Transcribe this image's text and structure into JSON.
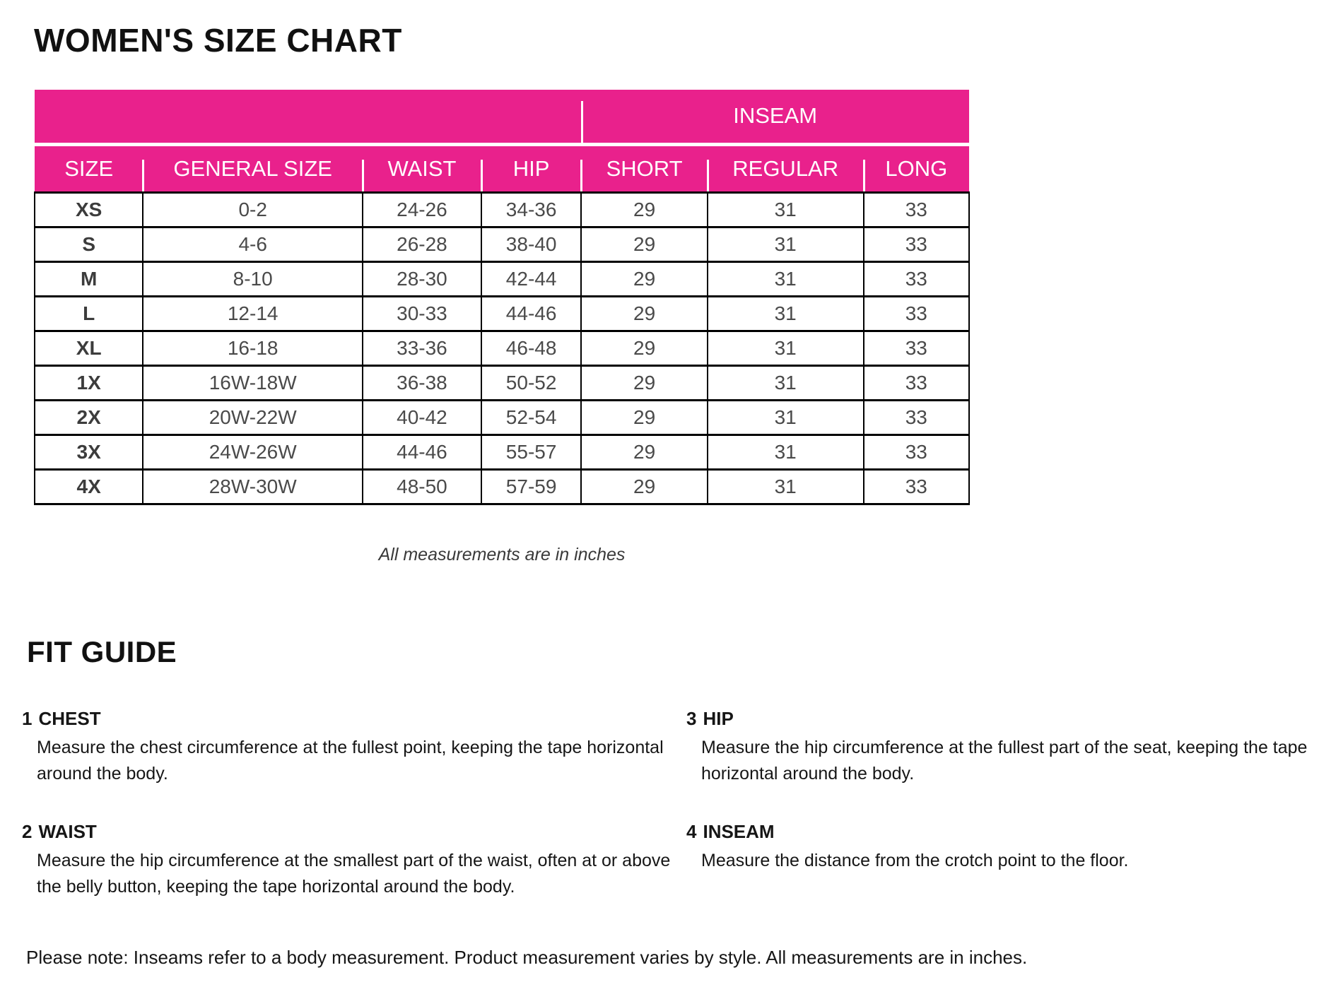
{
  "page": {
    "title": "WOMEN'S SIZE CHART",
    "table_caption": "All measurements are in inches",
    "bottom_note": "Please note: Inseams refer to a body measurement. Product measurement varies by style. All measurements are in inches."
  },
  "colors": {
    "accent_pink": "#E9218C",
    "table_border": "#000000",
    "cell_text": "#4a4a4a",
    "header_text": "#ffffff"
  },
  "size_chart": {
    "inseam_header": "INSEAM",
    "columns": [
      "SIZE",
      "GENERAL SIZE",
      "WAIST",
      "HIP",
      "SHORT",
      "REGULAR",
      "LONG"
    ],
    "rows": [
      [
        "XS",
        "0-2",
        "24-26",
        "34-36",
        "29",
        "31",
        "33"
      ],
      [
        "S",
        "4-6",
        "26-28",
        "38-40",
        "29",
        "31",
        "33"
      ],
      [
        "M",
        "8-10",
        "28-30",
        "42-44",
        "29",
        "31",
        "33"
      ],
      [
        "L",
        "12-14",
        "30-33",
        "44-46",
        "29",
        "31",
        "33"
      ],
      [
        "XL",
        "16-18",
        "33-36",
        "46-48",
        "29",
        "31",
        "33"
      ],
      [
        "1X",
        "16W-18W",
        "36-38",
        "50-52",
        "29",
        "31",
        "33"
      ],
      [
        "2X",
        "20W-22W",
        "40-42",
        "52-54",
        "29",
        "31",
        "33"
      ],
      [
        "3X",
        "24W-26W",
        "44-46",
        "55-57",
        "29",
        "31",
        "33"
      ],
      [
        "4X",
        "28W-30W",
        "48-50",
        "57-59",
        "29",
        "31",
        "33"
      ]
    ]
  },
  "fit_guide": {
    "title": "FIT GUIDE",
    "items": [
      {
        "num": "1",
        "label": "CHEST",
        "text": "Measure the chest circumference at the fullest point, keeping the tape horizontal around the body."
      },
      {
        "num": "2",
        "label": "WAIST",
        "text": "Measure the hip circumference at the smallest part of the waist, often at or above the belly button, keeping the tape horizontal around the body."
      },
      {
        "num": "3",
        "label": "HIP",
        "text": "Measure the hip circumference at the fullest part of the seat, keeping the tape horizontal around the body."
      },
      {
        "num": "4",
        "label": "INSEAM",
        "text": "Measure the distance from the crotch point to the floor."
      }
    ]
  }
}
